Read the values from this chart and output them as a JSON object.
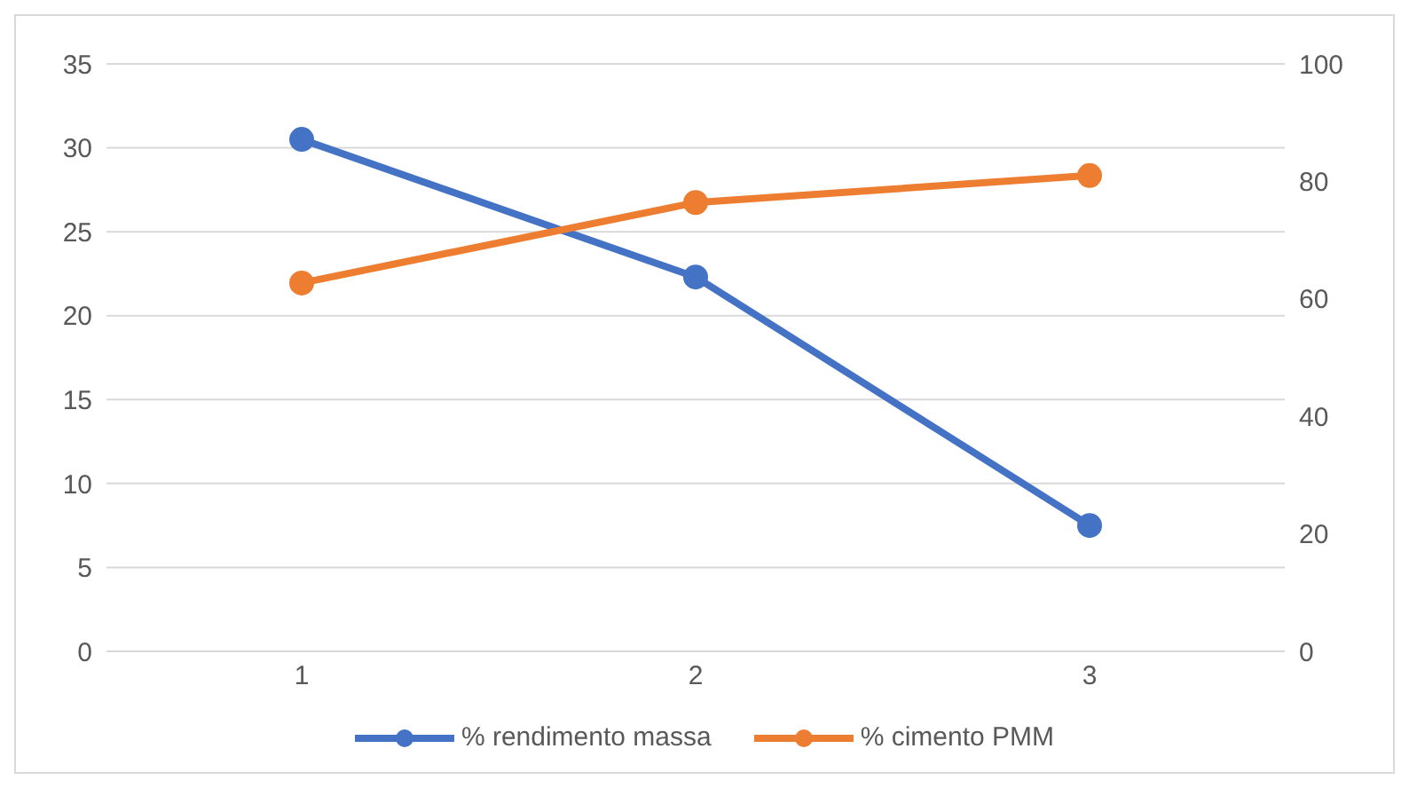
{
  "chart_data": {
    "type": "line",
    "categories": [
      "1",
      "2",
      "3"
    ],
    "series": [
      {
        "name": "% rendimento massa",
        "color": "#4472c4",
        "values": [
          30.5,
          22.3,
          7.5
        ]
      },
      {
        "name": "% cimento PMM",
        "color": "#ed7d31",
        "values": [
          62.7,
          76.4,
          81
        ],
        "axis": "y2"
      }
    ],
    "ylim": [
      0,
      35
    ],
    "yticks": [
      0,
      5,
      10,
      15,
      20,
      25,
      30,
      35
    ],
    "y2lim": [
      0,
      100
    ],
    "y2ticks": [
      0,
      20,
      40,
      60,
      80,
      100
    ],
    "grid": "y",
    "legend": "bottom",
    "marker": "circle",
    "line_style": "solid"
  }
}
